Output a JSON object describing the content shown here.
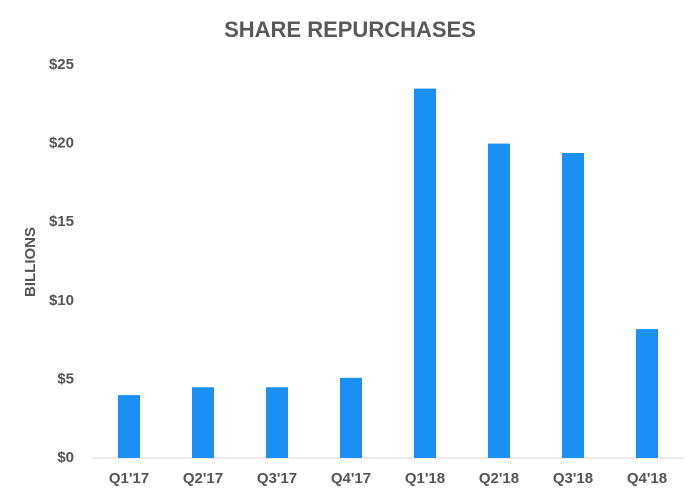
{
  "chart_data": {
    "type": "bar",
    "title": "SHARE REPURCHASES",
    "y_label": "BILLIONS",
    "categories": [
      "Q1'17",
      "Q2'17",
      "Q3'17",
      "Q4'17",
      "Q1'18",
      "Q2'18",
      "Q3'18",
      "Q4'18"
    ],
    "values": [
      4.0,
      4.5,
      4.5,
      5.1,
      23.5,
      20.0,
      19.4,
      8.2
    ],
    "color": "#1a8ff5",
    "ylim": [
      0,
      25
    ],
    "yticks": [
      {
        "value": 0,
        "label": "$0"
      },
      {
        "value": 5,
        "label": "$5"
      },
      {
        "value": 10,
        "label": "$10"
      },
      {
        "value": 15,
        "label": "$15"
      },
      {
        "value": 20,
        "label": "$20"
      },
      {
        "value": 25,
        "label": "$25"
      }
    ],
    "grid": false
  }
}
